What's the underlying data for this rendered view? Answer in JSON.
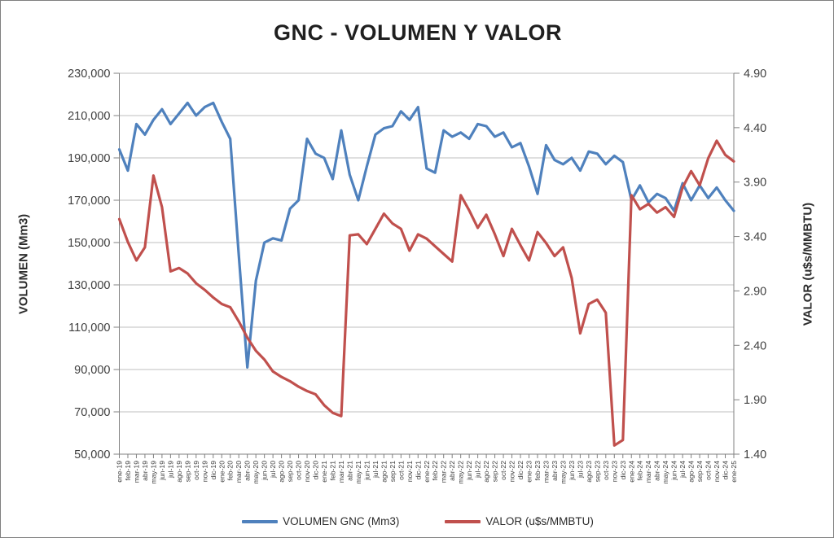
{
  "window": {
    "background": "#ffffff",
    "border_color": "#7f7f7f"
  },
  "title": "GNC - VOLUMEN Y VALOR",
  "legend": {
    "items": [
      {
        "label": "VOLUMEN GNC (Mm3)",
        "color": "#4F81BD"
      },
      {
        "label": "VALOR (u$s/MMBTU)",
        "color": "#C0504D"
      }
    ]
  },
  "colors": {
    "volume_line": "#4F81BD",
    "value_line": "#C0504D",
    "gridline": "#BFBFBF",
    "axis_line": "#808080",
    "tick_text": "#3f3f3f",
    "title_text": "#1f1f1f"
  },
  "chart_data": {
    "type": "line",
    "title": "GNC - VOLUMEN Y VALOR",
    "grid": true,
    "legend_position": "bottom",
    "x": [
      "ene-19",
      "feb-19",
      "mar-19",
      "abr-19",
      "may-19",
      "jun-19",
      "jul-19",
      "ago-19",
      "sep-19",
      "oct-19",
      "nov-19",
      "dic-19",
      "ene-20",
      "feb-20",
      "mar-20",
      "abr-20",
      "may-20",
      "jun-20",
      "jul-20",
      "ago-20",
      "sep-20",
      "oct-20",
      "nov-20",
      "dic-20",
      "ene-21",
      "feb-21",
      "mar-21",
      "abr-21",
      "may-21",
      "jun-21",
      "jul-21",
      "ago-21",
      "sep-21",
      "oct-21",
      "nov-21",
      "dic-21",
      "ene-22",
      "feb-22",
      "mar-22",
      "abr-22",
      "may-22",
      "jun-22",
      "jul-22",
      "ago-22",
      "sep-22",
      "oct-22",
      "nov-22",
      "dic-22",
      "ene-23",
      "feb-23",
      "mar-23",
      "abr-23",
      "may-23",
      "jun-23",
      "jul-23",
      "ago-23",
      "sep-23",
      "oct-23",
      "nov-23",
      "dic-23",
      "ene-24",
      "feb-24",
      "mar-24",
      "abr-24",
      "may-24",
      "jun-24",
      "jul-24",
      "ago-24",
      "sep-24",
      "oct-24",
      "nov-24",
      "dic-24",
      "ene-25"
    ],
    "left_axis": {
      "label": "VOLUMEN (Mm3)",
      "min": 50000,
      "max": 230000,
      "step": 20000,
      "tick_labels": [
        "230,000",
        "210,000",
        "190,000",
        "170,000",
        "150,000",
        "130,000",
        "110,000",
        "90,000",
        "70,000",
        "50,000"
      ]
    },
    "right_axis": {
      "label": "VALOR (u$s/MMBTU)",
      "min": 1.4,
      "max": 4.9,
      "step": 0.5,
      "tick_labels": [
        "4.90",
        "4.40",
        "3.90",
        "3.40",
        "2.90",
        "2.40",
        "1.90",
        "1.40"
      ]
    },
    "series": [
      {
        "name": "VOLUMEN GNC (Mm3)",
        "axis": "left",
        "color": "#4F81BD",
        "values": [
          194000,
          184000,
          206000,
          201000,
          208000,
          213000,
          206000,
          211000,
          216000,
          210000,
          214000,
          216000,
          207000,
          199000,
          144000,
          91000,
          132000,
          150000,
          152000,
          151000,
          166000,
          170000,
          199000,
          192000,
          190000,
          180000,
          203000,
          182000,
          170000,
          186000,
          201000,
          204000,
          205000,
          212000,
          208000,
          214000,
          185000,
          183000,
          203000,
          200000,
          202000,
          199000,
          206000,
          205000,
          200000,
          202000,
          195000,
          197000,
          186000,
          173000,
          196000,
          189000,
          187000,
          190000,
          184000,
          193000,
          192000,
          187000,
          191000,
          188000,
          170000,
          177000,
          169000,
          173000,
          171000,
          165000,
          178000,
          170000,
          177000,
          171000,
          176000,
          170000,
          165000
        ]
      },
      {
        "name": "VALOR (u$s/MMBTU)",
        "axis": "right",
        "color": "#C0504D",
        "values": [
          3.56,
          3.35,
          3.18,
          3.3,
          3.96,
          3.67,
          3.08,
          3.11,
          3.06,
          2.97,
          2.91,
          2.84,
          2.78,
          2.75,
          2.62,
          2.47,
          2.35,
          2.27,
          2.16,
          2.11,
          2.07,
          2.02,
          1.98,
          1.95,
          1.85,
          1.78,
          1.75,
          3.41,
          3.42,
          3.33,
          3.47,
          3.61,
          3.52,
          3.47,
          3.27,
          3.42,
          3.38,
          3.31,
          3.24,
          3.17,
          3.78,
          3.64,
          3.48,
          3.6,
          3.42,
          3.22,
          3.47,
          3.32,
          3.18,
          3.44,
          3.34,
          3.22,
          3.3,
          3.02,
          2.51,
          2.78,
          2.82,
          2.7,
          1.48,
          1.53,
          3.78,
          3.65,
          3.7,
          3.62,
          3.67,
          3.58,
          3.85,
          4.0,
          3.87,
          4.12,
          4.28,
          4.15,
          4.09
        ]
      }
    ]
  }
}
